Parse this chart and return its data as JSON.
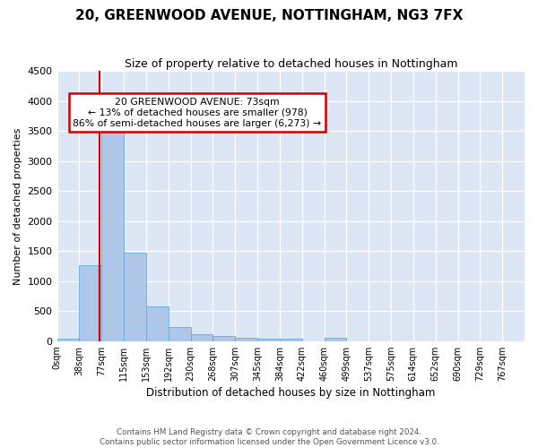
{
  "title": "20, GREENWOOD AVENUE, NOTTINGHAM, NG3 7FX",
  "subtitle": "Size of property relative to detached houses in Nottingham",
  "xlabel": "Distribution of detached houses by size in Nottingham",
  "ylabel": "Number of detached properties",
  "footer_line1": "Contains HM Land Registry data © Crown copyright and database right 2024.",
  "footer_line2": "Contains public sector information licensed under the Open Government Licence v3.0.",
  "annotation_line1": "20 GREENWOOD AVENUE: 73sqm",
  "annotation_line2": "← 13% of detached houses are smaller (978)",
  "annotation_line3": "86% of semi-detached houses are larger (6,273) →",
  "bar_color": "#aec6e8",
  "bar_edge_color": "#6aaad4",
  "ref_line_color": "#cc0000",
  "background_color": "#dce6f5",
  "bin_labels": [
    "0sqm",
    "38sqm",
    "77sqm",
    "115sqm",
    "153sqm",
    "192sqm",
    "230sqm",
    "268sqm",
    "307sqm",
    "345sqm",
    "384sqm",
    "422sqm",
    "460sqm",
    "499sqm",
    "537sqm",
    "575sqm",
    "614sqm",
    "652sqm",
    "690sqm",
    "729sqm",
    "767sqm"
  ],
  "bar_values": [
    45,
    1270,
    3500,
    1480,
    580,
    240,
    115,
    80,
    55,
    45,
    40,
    0,
    55,
    0,
    0,
    0,
    0,
    0,
    0,
    0,
    0
  ],
  "ref_line_x": 1.897,
  "ylim": [
    0,
    4500
  ],
  "yticks": [
    0,
    500,
    1000,
    1500,
    2000,
    2500,
    3000,
    3500,
    4000,
    4500
  ]
}
